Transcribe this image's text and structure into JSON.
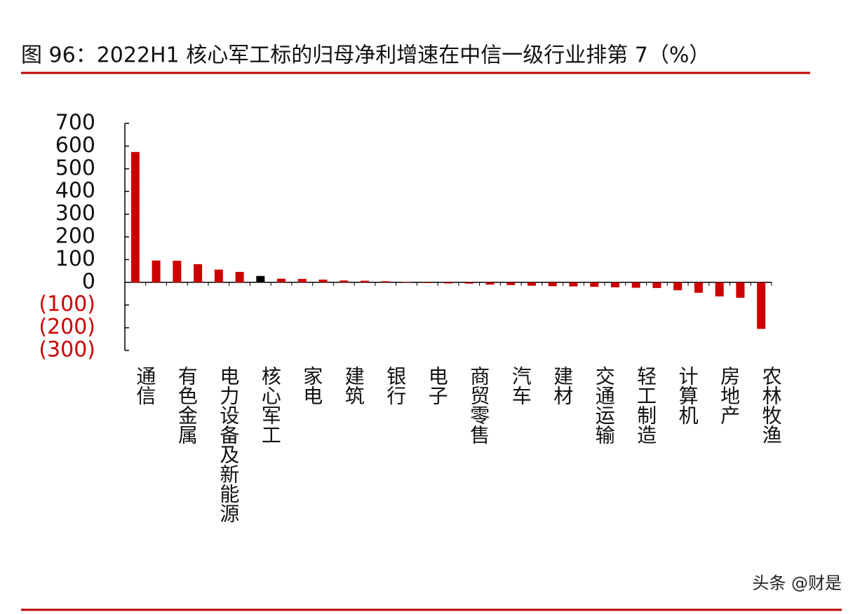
{
  "chart_data": {
    "type": "bar",
    "title": "图 96：2022H1 核心军工标的归母净利增速在中信一级行业排第 7（%）",
    "categories": [
      "通信",
      null,
      "有色金属",
      null,
      "电力设备及新能源",
      null,
      "核心军工",
      null,
      "家电",
      null,
      "建筑",
      null,
      "银行",
      null,
      "电子",
      null,
      "商贸零售",
      null,
      "汽车",
      null,
      "建材",
      null,
      "交通运输",
      null,
      "轻工制造",
      null,
      "计算机",
      null,
      "房地产",
      null,
      "农林牧渔"
    ],
    "values": [
      574,
      96,
      95,
      80,
      56,
      46,
      28,
      16,
      15,
      12,
      8,
      7,
      5,
      2,
      -3,
      -5,
      -6,
      -10,
      -12,
      -15,
      -17,
      -18,
      -20,
      -22,
      -24,
      -25,
      -35,
      -46,
      -62,
      -68,
      -205
    ],
    "colors": [
      "#cc0000",
      "#cc0000",
      "#cc0000",
      "#cc0000",
      "#cc0000",
      "#cc0000",
      "#000000",
      "#cc0000",
      "#cc0000",
      "#cc0000",
      "#cc0000",
      "#cc0000",
      "#cc0000",
      "#cc0000",
      "#cc0000",
      "#cc0000",
      "#cc0000",
      "#cc0000",
      "#cc0000",
      "#cc0000",
      "#cc0000",
      "#cc0000",
      "#cc0000",
      "#cc0000",
      "#cc0000",
      "#cc0000",
      "#cc0000",
      "#cc0000",
      "#cc0000",
      "#cc0000",
      "#cc0000"
    ],
    "ylim": [
      -300,
      700
    ],
    "yticks": [
      {
        "value": -300,
        "label": "(300)"
      },
      {
        "value": -200,
        "label": "(200)"
      },
      {
        "value": -100,
        "label": "(100)"
      },
      0,
      100,
      200,
      300,
      400,
      500,
      600,
      700
    ],
    "grid": false,
    "watermark": "头条 @财是"
  }
}
